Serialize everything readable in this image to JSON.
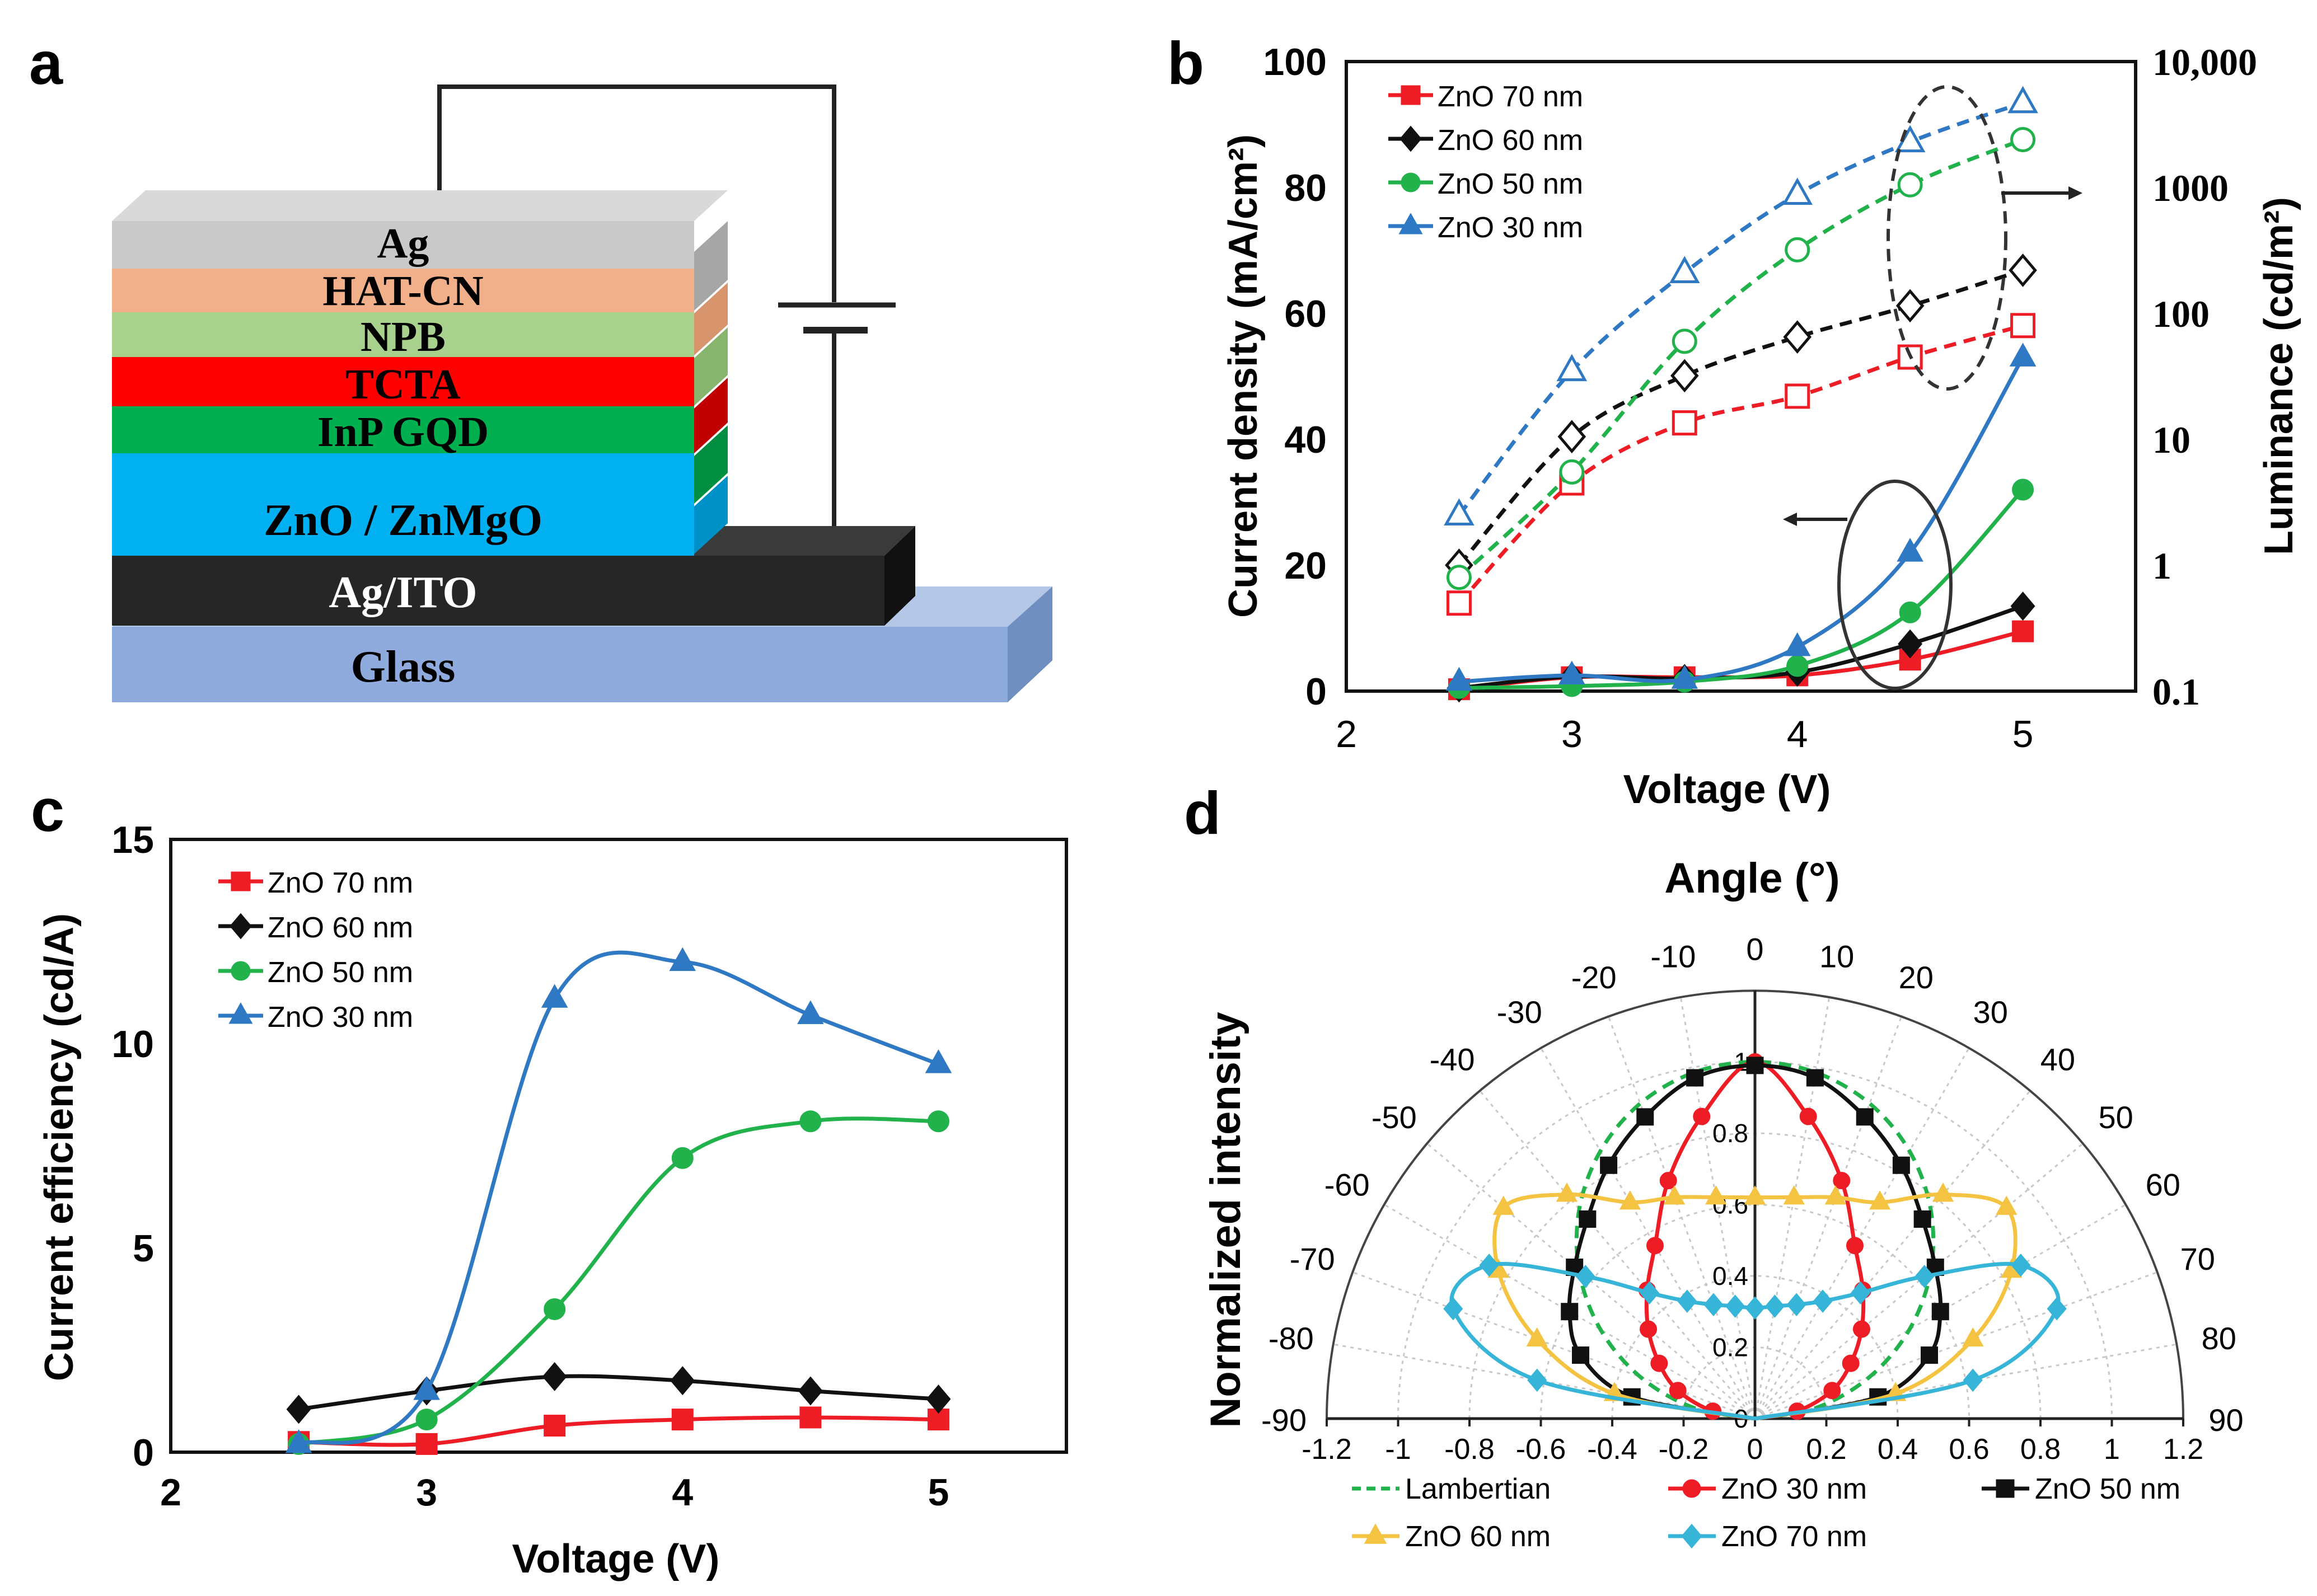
{
  "panel_labels": {
    "a": "a",
    "b": "b",
    "c": "c",
    "d": "d"
  },
  "device": {
    "layers": [
      "Ag",
      "HAT-CN",
      "NPB",
      "TCTA",
      "InP GQD",
      "ZnO / ZnMgO",
      "Ag/ITO",
      "Glass"
    ],
    "colors": {
      "Ag": "#c9c9c9",
      "HAT-CN": "#f2b08a",
      "NPB": "#a9d18e",
      "TCTA": "#ff0000",
      "InP GQD": "#00b050",
      "ZnO / ZnMgO": "#00b0f0",
      "Ag/ITO": "#262626",
      "Glass": "#8faadc"
    }
  },
  "colors": {
    "red": "#ee1c25",
    "black": "#111111",
    "green": "#22b24c",
    "blue": "#2f78c4",
    "yellow": "#f5c342",
    "cyan": "#36b5d8",
    "lambertian": "#22b24c"
  },
  "chart_data": [
    {
      "panel": "b",
      "type": "line",
      "xlabel": "Voltage (V)",
      "ylabel": "Current density (mA/cm²)",
      "y2label": "Luminance (cd/m²)",
      "xlim": [
        2,
        5.5
      ],
      "ylim": [
        0,
        100
      ],
      "y2lim": [
        0.1,
        10000
      ],
      "y2scale": "log",
      "xticks": [
        "2",
        "3",
        "4",
        "5"
      ],
      "yticks": [
        "0",
        "20",
        "40",
        "60",
        "80",
        "100"
      ],
      "y2ticks": [
        "0.1",
        "1",
        "10",
        "100",
        "1000",
        "10,000"
      ],
      "x": [
        2.5,
        3,
        3.5,
        4,
        4.5,
        5
      ],
      "legend": [
        "ZnO 70 nm",
        "ZnO 60 nm",
        "ZnO 50 nm",
        "ZnO 30 nm"
      ],
      "current_density": [
        {
          "name": "ZnO 70 nm",
          "values": [
            0.3,
            2.2,
            2.2,
            2.5,
            5,
            9.5
          ]
        },
        {
          "name": "ZnO 60 nm",
          "values": [
            0.5,
            2.3,
            2.0,
            3.0,
            7.5,
            13.5
          ]
        },
        {
          "name": "ZnO 50 nm",
          "values": [
            0.5,
            0.8,
            1.5,
            4.0,
            12.5,
            32
          ]
        },
        {
          "name": "ZnO 30 nm",
          "values": [
            1.5,
            2.5,
            1.8,
            7.0,
            22,
            53
          ]
        }
      ],
      "luminance": [
        {
          "name": "ZnO 70 nm",
          "values": [
            0.5,
            4.5,
            13.5,
            22,
            45,
            80
          ]
        },
        {
          "name": "ZnO 60 nm",
          "values": [
            1.0,
            10.5,
            32,
            65,
            115,
            220
          ]
        },
        {
          "name": "ZnO 50 nm",
          "values": [
            0.8,
            5.5,
            60,
            320,
            1050,
            2400
          ]
        },
        {
          "name": "ZnO 30 nm",
          "values": [
            2.5,
            35,
            210,
            880,
            2300,
            4700
          ]
        }
      ]
    },
    {
      "panel": "c",
      "type": "line",
      "xlabel": "Voltage (V)",
      "ylabel": "Current efficiency (cd/A)",
      "xlim": [
        2,
        5.5
      ],
      "ylim": [
        0,
        15
      ],
      "xticks": [
        "2",
        "3",
        "4",
        "5"
      ],
      "yticks": [
        "0",
        "5",
        "10",
        "15"
      ],
      "x": [
        2.5,
        3,
        3.5,
        4,
        4.5,
        5
      ],
      "legend": [
        "ZnO 70 nm",
        "ZnO 60 nm",
        "ZnO 50 nm",
        "ZnO 30 nm"
      ],
      "series": [
        {
          "name": "ZnO 70 nm",
          "values": [
            0.25,
            0.2,
            0.65,
            0.8,
            0.85,
            0.8
          ]
        },
        {
          "name": "ZnO 60 nm",
          "values": [
            1.05,
            1.5,
            1.85,
            1.75,
            1.5,
            1.3
          ]
        },
        {
          "name": "ZnO 50 nm",
          "values": [
            0.2,
            0.8,
            3.5,
            7.2,
            8.1,
            8.1
          ]
        },
        {
          "name": "ZnO 30 nm",
          "values": [
            0.2,
            1.5,
            11.1,
            12.0,
            10.7,
            9.5
          ]
        }
      ]
    },
    {
      "panel": "d",
      "type": "polar",
      "title": "Angle (°)",
      "ylabel": "Normalized intensity",
      "angle_ticks": [
        "-90",
        "-80",
        "-70",
        "-60",
        "-50",
        "-40",
        "-30",
        "-20",
        "-10",
        "0",
        "10",
        "20",
        "30",
        "40",
        "50",
        "60",
        "70",
        "80",
        "90"
      ],
      "x_ticks": [
        "-1.2",
        "-1",
        "-0.8",
        "-0.6",
        "-0.4",
        "-0.2",
        "0",
        "0.2",
        "0.4",
        "0.6",
        "0.8",
        "1",
        "1.2"
      ],
      "radial_ticks": [
        "0",
        "0.2",
        "0.4",
        "0.6",
        "0.8",
        "1"
      ],
      "rmax": 1.2,
      "angles": [
        -90,
        -80,
        -70,
        -60,
        -50,
        -40,
        -30,
        -20,
        -10,
        0,
        10,
        20,
        30,
        40,
        50,
        60,
        70,
        80,
        90
      ],
      "legend": [
        "Lambertian",
        "ZnO 30 nm",
        "ZnO 50 nm",
        "ZnO 60 nm",
        "ZnO 70 nm"
      ],
      "series": [
        {
          "name": "Lambertian",
          "style": "dashed",
          "values": [
            0,
            0.174,
            0.342,
            0.5,
            0.643,
            0.766,
            0.866,
            0.94,
            0.985,
            1,
            0.985,
            0.94,
            0.866,
            0.766,
            0.643,
            0.5,
            0.342,
            0.174,
            0
          ]
        },
        {
          "name": "ZnO 30 nm",
          "values": [
            0,
            0.12,
            0.23,
            0.31,
            0.39,
            0.47,
            0.56,
            0.71,
            0.86,
            1.0,
            0.86,
            0.71,
            0.56,
            0.47,
            0.39,
            0.31,
            0.23,
            0.12,
            0
          ]
        },
        {
          "name": "ZnO 50 nm",
          "values": [
            0,
            0.35,
            0.52,
            0.6,
            0.66,
            0.73,
            0.82,
            0.9,
            0.97,
            0.99,
            0.97,
            0.9,
            0.82,
            0.73,
            0.66,
            0.6,
            0.52,
            0.35,
            0
          ]
        },
        {
          "name": "ZnO 60 nm",
          "values": [
            0,
            0.4,
            0.65,
            0.83,
            0.92,
            0.82,
            0.7,
            0.66,
            0.63,
            0.62,
            0.63,
            0.66,
            0.7,
            0.82,
            0.92,
            0.83,
            0.65,
            0.4,
            0
          ]
        },
        {
          "name": "ZnO 70 nm",
          "values": [
            0,
            0.62,
            0.9,
            0.86,
            0.62,
            0.46,
            0.38,
            0.34,
            0.32,
            0.31,
            0.32,
            0.34,
            0.38,
            0.46,
            0.62,
            0.86,
            0.9,
            0.62,
            0
          ]
        }
      ]
    }
  ]
}
